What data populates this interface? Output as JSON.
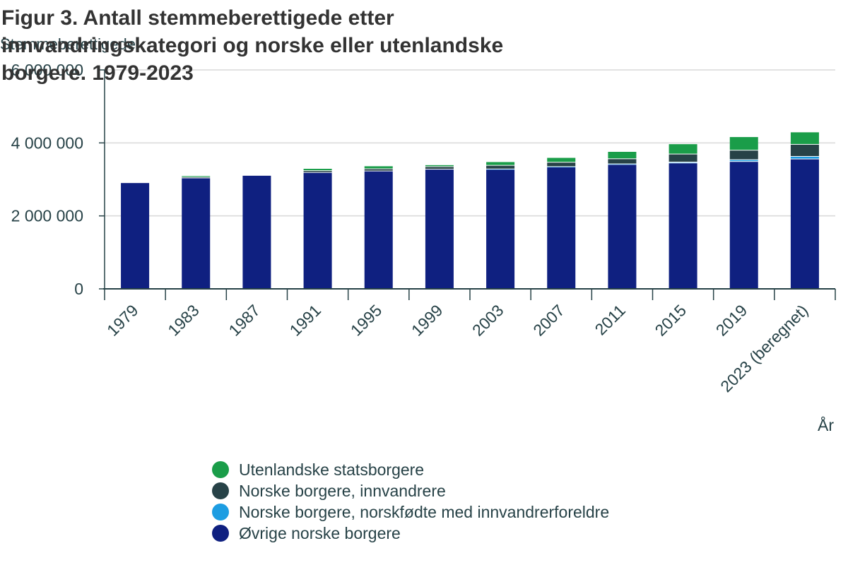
{
  "title": "Figur 3. Antall stemmeberettigede etter innvandringskategori og norske eller utenlandske borgere. 1979-2023",
  "colors": {
    "utenlandske": "#1a9d49",
    "innvandrere": "#274247",
    "norskfodte": "#1d9de2",
    "ovrige": "#0f2080",
    "grid": "#d9d9d9",
    "axis": "#274247"
  },
  "chart_data": {
    "type": "bar",
    "stacked": true,
    "title": "Figur 3. Antall stemmeberettigede etter innvandringskategori og norske eller utenlandske borgere. 1979-2023",
    "xlabel": "År",
    "ylabel": "Stemmeberettigede",
    "ylim": [
      0,
      6000000
    ],
    "yticks": [
      0,
      2000000,
      4000000,
      6000000
    ],
    "ytick_labels": [
      "0",
      "2 000 000",
      "4 000 000",
      "6 000 000"
    ],
    "grid": true,
    "legend_position": "bottom",
    "categories": [
      "1979",
      "1983",
      "1987",
      "1991",
      "1995",
      "1999",
      "2003",
      "2007",
      "2011",
      "2015",
      "2019",
      "2023 (beregnet)"
    ],
    "series": [
      {
        "name": "Øvrige norske borgere",
        "color": "#0f2080",
        "values": [
          2900000,
          3030000,
          3100000,
          3180000,
          3220000,
          3270000,
          3270000,
          3330000,
          3400000,
          3440000,
          3480000,
          3550000
        ]
      },
      {
        "name": "Norske borgere, norskfødte med innvandrerforeldre",
        "color": "#1d9de2",
        "values": [
          0,
          0,
          0,
          0,
          0,
          0,
          5000,
          10000,
          15000,
          25000,
          50000,
          70000
        ]
      },
      {
        "name": "Norske borgere, innvandrere",
        "color": "#274247",
        "values": [
          0,
          20000,
          0,
          50000,
          60000,
          70000,
          100000,
          120000,
          140000,
          220000,
          260000,
          330000
        ]
      },
      {
        "name": "Utenlandske statsborgere",
        "color": "#1a9d49",
        "values": [
          0,
          40000,
          0,
          60000,
          80000,
          50000,
          100000,
          130000,
          200000,
          280000,
          370000,
          340000
        ]
      }
    ]
  },
  "legend": [
    {
      "label": "Utenlandske statsborgere",
      "color": "#1a9d49"
    },
    {
      "label": "Norske borgere, innvandrere",
      "color": "#274247"
    },
    {
      "label": "Norske borgere, norskfødte med innvandrerforeldre",
      "color": "#1d9de2"
    },
    {
      "label": "Øvrige norske borgere",
      "color": "#0f2080"
    }
  ]
}
